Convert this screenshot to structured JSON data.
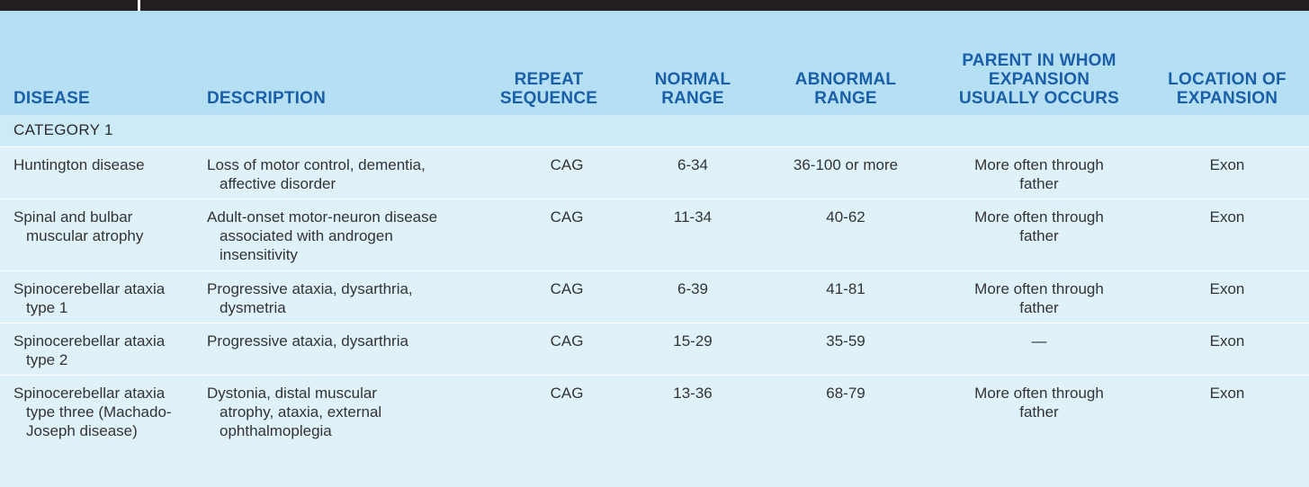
{
  "headers": {
    "disease": "DISEASE",
    "description": "DESCRIPTION",
    "repeat_l1": "REPEAT",
    "repeat_l2": "SEQUENCE",
    "normal_l1": "NORMAL",
    "normal_l2": "RANGE",
    "abnormal_l1": "ABNORMAL",
    "abnormal_l2": "RANGE",
    "parent_l1": "PARENT IN WHOM",
    "parent_l2": "EXPANSION",
    "parent_l3": "USUALLY OCCURS",
    "location_l1": "LOCATION OF",
    "location_l2": "EXPANSION"
  },
  "category": "CATEGORY 1",
  "rows": [
    {
      "disease": "Huntington disease",
      "description": "Loss of motor control, dementia, affective disorder",
      "repeat": "CAG",
      "normal": "6-34",
      "abnormal": "36-100 or more",
      "parent": "More often through father",
      "location": "Exon"
    },
    {
      "disease": "Spinal and bulbar muscular atrophy",
      "description": "Adult-onset motor-neuron disease associated with androgen insensitivity",
      "repeat": "CAG",
      "normal": "11-34",
      "abnormal": "40-62",
      "parent": "More often through father",
      "location": "Exon"
    },
    {
      "disease": "Spinocerebellar ataxia type 1",
      "description": "Progressive ataxia, dysarthria, dysmetria",
      "repeat": "CAG",
      "normal": "6-39",
      "abnormal": "41-81",
      "parent": "More often through father",
      "location": "Exon"
    },
    {
      "disease": "Spinocerebellar ataxia type 2",
      "description": "Progressive ataxia, dysarthria",
      "repeat": "CAG",
      "normal": "15-29",
      "abnormal": "35-59",
      "parent": "—",
      "location": "Exon"
    },
    {
      "disease": "Spinocerebellar ataxia type three (Machado-Joseph disease)",
      "description": "Dystonia, distal muscular atrophy, ataxia, external ophthalmoplegia",
      "repeat": "CAG",
      "normal": "13-36",
      "abnormal": "68-79",
      "parent": "More often through father",
      "location": "Exon"
    }
  ]
}
